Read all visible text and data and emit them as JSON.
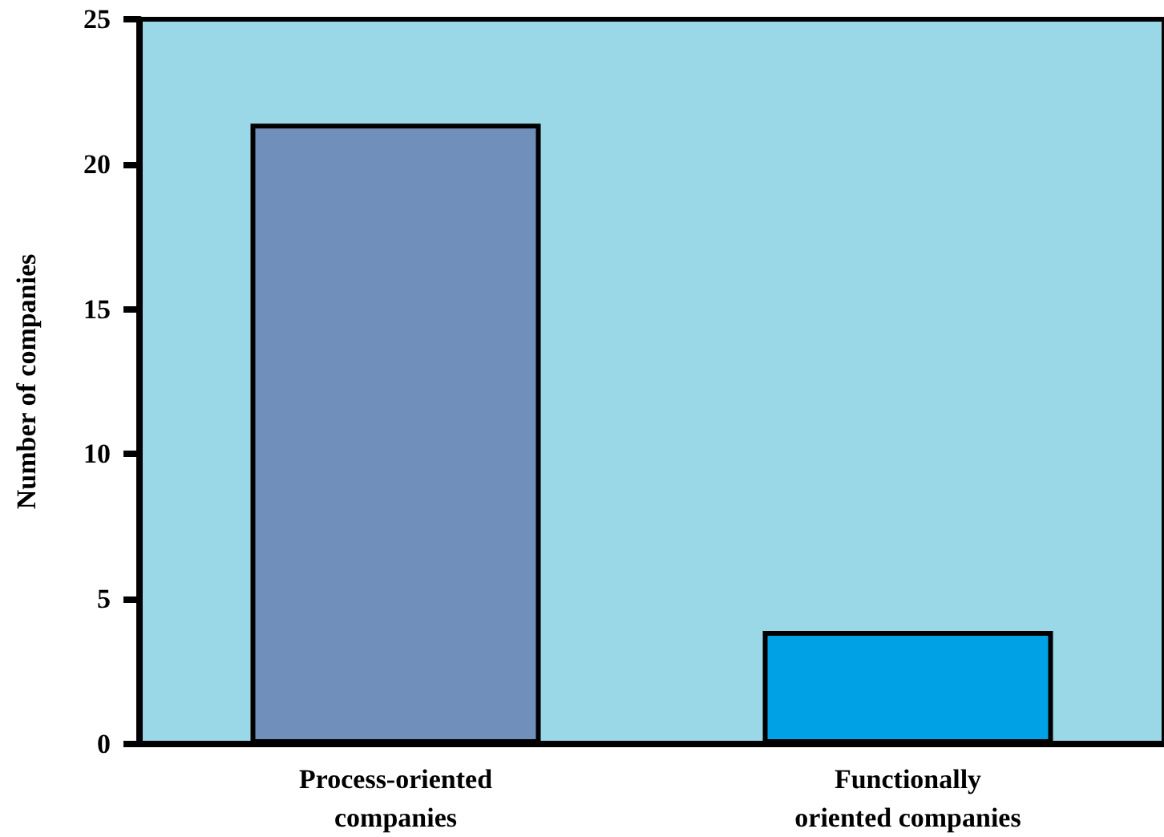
{
  "chart_data": {
    "type": "bar",
    "ylabel": "Number of companies",
    "categories": [
      "Process-oriented\ncompanies",
      "Functionally\noriented companies"
    ],
    "values": [
      21.4,
      3.9
    ],
    "colors": [
      "#708fbb",
      "#00a2e6"
    ],
    "ylim": [
      0,
      25
    ],
    "yticks": [
      0,
      5,
      10,
      15,
      20,
      25
    ],
    "grid": false
  }
}
